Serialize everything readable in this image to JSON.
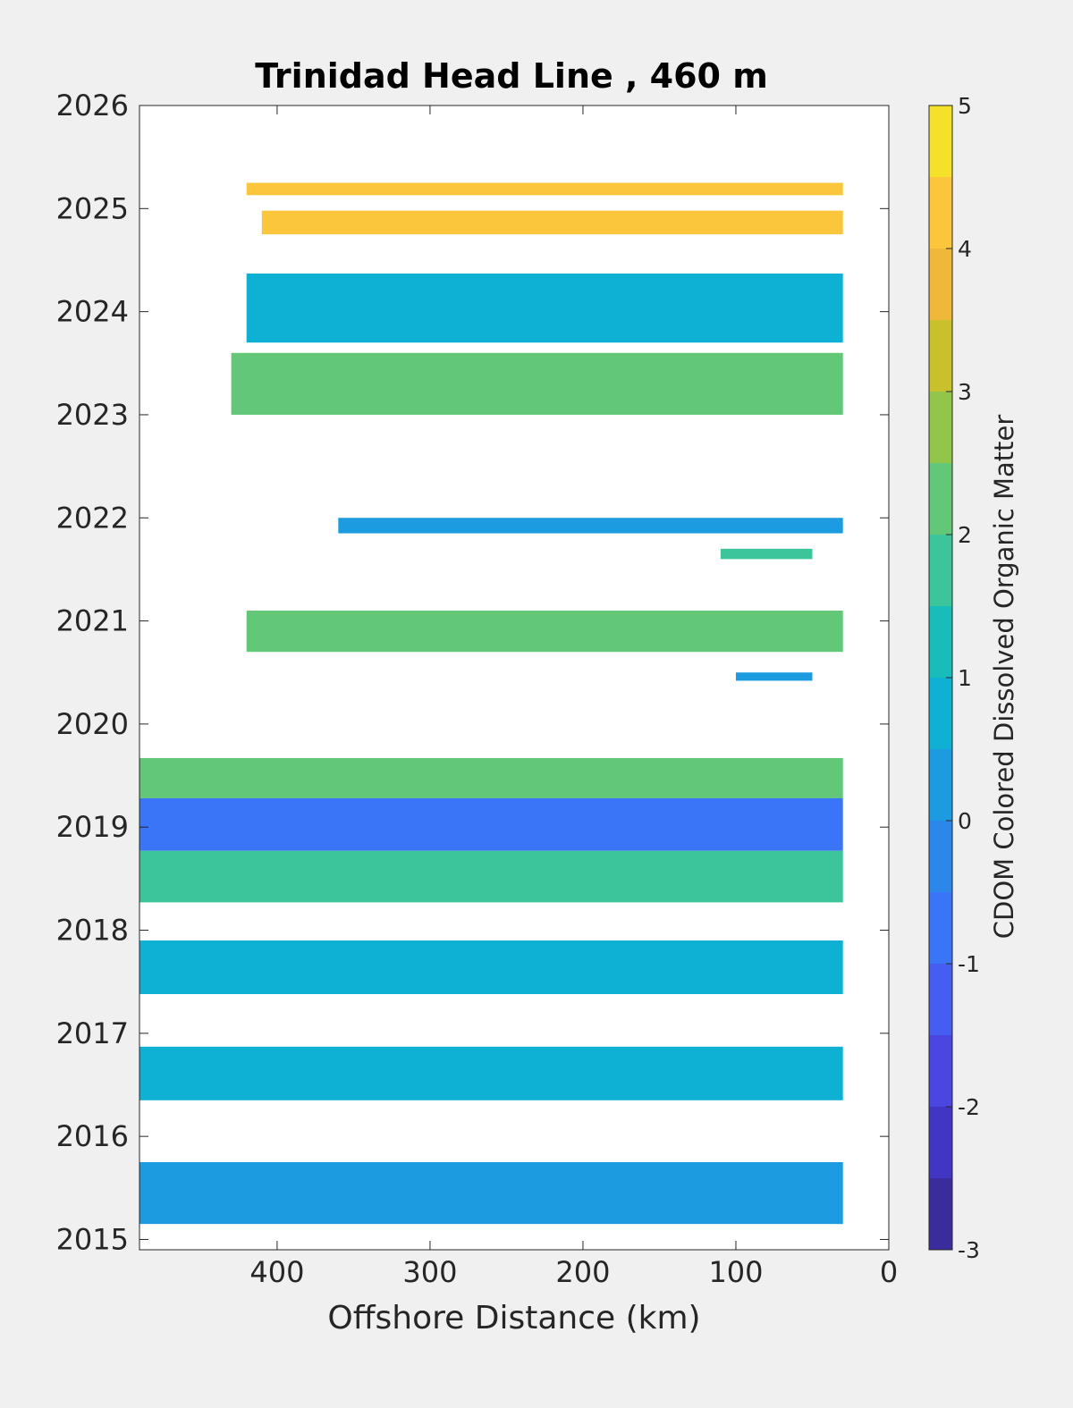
{
  "chart_data": {
    "type": "heatmap",
    "title": "Trinidad Head Line , 460 m",
    "xlabel": "Offshore Distance (km)",
    "ylabel": "",
    "xlim": [
      490,
      0
    ],
    "ylim": [
      2014.9,
      2026
    ],
    "x_reversed": true,
    "x_ticks": [
      400,
      300,
      200,
      100,
      0
    ],
    "y_ticks": [
      2015,
      2016,
      2017,
      2018,
      2019,
      2020,
      2021,
      2022,
      2023,
      2024,
      2025,
      2026
    ],
    "grid": false,
    "colorbar": {
      "label": "CDOM Colored Dissolved Organic Matter",
      "ticks": [
        -3,
        -2,
        -1,
        0,
        1,
        2,
        3,
        4,
        5
      ],
      "levels": [
        {
          "lo": -3.0,
          "hi": -2.5,
          "color": "#3b2c9e"
        },
        {
          "lo": -2.5,
          "hi": -2.0,
          "color": "#4135c4"
        },
        {
          "lo": -2.0,
          "hi": -1.5,
          "color": "#4a46df"
        },
        {
          "lo": -1.5,
          "hi": -1.0,
          "color": "#465df1"
        },
        {
          "lo": -1.0,
          "hi": -0.5,
          "color": "#3a75f7"
        },
        {
          "lo": -0.5,
          "hi": 0.0,
          "color": "#2b88ea"
        },
        {
          "lo": 0.0,
          "hi": 0.5,
          "color": "#1c9be0"
        },
        {
          "lo": 0.5,
          "hi": 1.0,
          "color": "#0eb1d3"
        },
        {
          "lo": 1.0,
          "hi": 1.5,
          "color": "#18bcb8"
        },
        {
          "lo": 1.5,
          "hi": 2.0,
          "color": "#3cc49a"
        },
        {
          "lo": 2.0,
          "hi": 2.5,
          "color": "#62c777"
        },
        {
          "lo": 2.5,
          "hi": 3.0,
          "color": "#93c54b"
        },
        {
          "lo": 3.0,
          "hi": 3.5,
          "color": "#c8c12c"
        },
        {
          "lo": 3.5,
          "hi": 4.0,
          "color": "#f0b83a"
        },
        {
          "lo": 4.0,
          "hi": 4.5,
          "color": "#fbc63b"
        },
        {
          "lo": 4.5,
          "hi": 5.0,
          "color": "#f6e12a"
        }
      ]
    },
    "bands": [
      {
        "x_from": 420,
        "x_to": 30,
        "t_from": 2025.13,
        "t_to": 2025.25,
        "value": 4.2
      },
      {
        "x_from": 410,
        "x_to": 30,
        "t_from": 2024.75,
        "t_to": 2024.98,
        "value": 4.3
      },
      {
        "x_from": 420,
        "x_to": 30,
        "t_from": 2023.7,
        "t_to": 2024.37,
        "value": 0.7
      },
      {
        "x_from": 430,
        "x_to": 30,
        "t_from": 2023.0,
        "t_to": 2023.6,
        "value": 2.0
      },
      {
        "x_from": 360,
        "x_to": 30,
        "t_from": 2021.85,
        "t_to": 2022.0,
        "value": 0.3
      },
      {
        "x_from": 110,
        "x_to": 50,
        "t_from": 2021.6,
        "t_to": 2021.7,
        "value": 1.8
      },
      {
        "x_from": 420,
        "x_to": 30,
        "t_from": 2020.7,
        "t_to": 2021.1,
        "value": 2.0
      },
      {
        "x_from": 100,
        "x_to": 50,
        "t_from": 2020.42,
        "t_to": 2020.5,
        "value": 0.4
      },
      {
        "x_from": 490,
        "x_to": 30,
        "t_from": 2019.28,
        "t_to": 2019.67,
        "value": 2.3
      },
      {
        "x_from": 490,
        "x_to": 30,
        "t_from": 2018.77,
        "t_to": 2019.28,
        "value": -0.6
      },
      {
        "x_from": 490,
        "x_to": 30,
        "t_from": 2018.27,
        "t_to": 2018.77,
        "value": 1.6
      },
      {
        "x_from": 490,
        "x_to": 30,
        "t_from": 2017.38,
        "t_to": 2017.9,
        "value": 0.8
      },
      {
        "x_from": 490,
        "x_to": 30,
        "t_from": 2016.35,
        "t_to": 2016.87,
        "value": 0.8
      },
      {
        "x_from": 490,
        "x_to": 30,
        "t_from": 2015.15,
        "t_to": 2015.75,
        "value": 0.4
      }
    ]
  }
}
